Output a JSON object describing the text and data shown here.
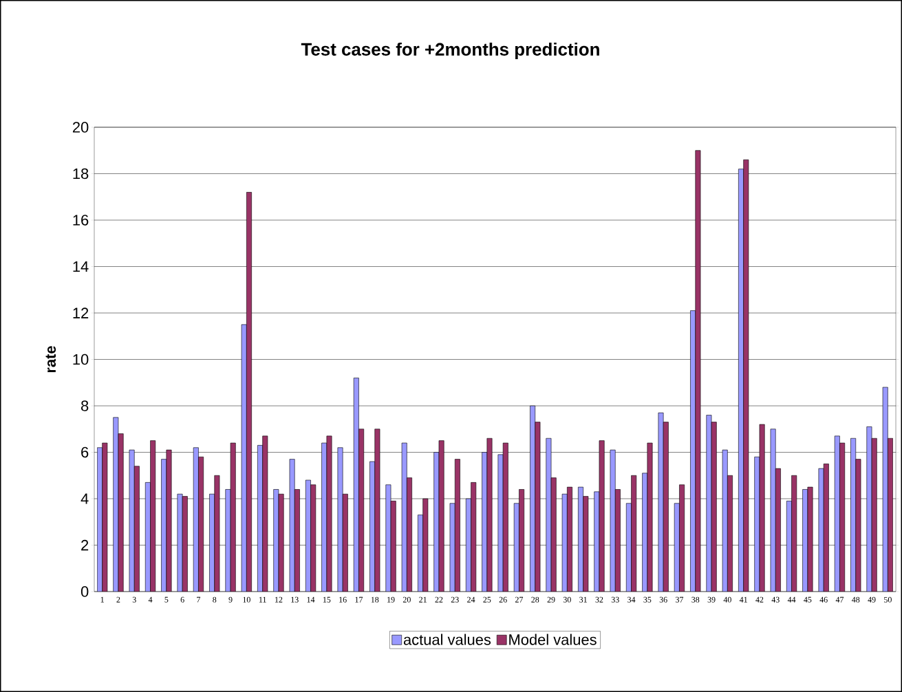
{
  "chart_data": {
    "type": "bar",
    "title": "Test cases for +2months prediction",
    "ylabel": "rate",
    "categories": [
      "1",
      "2",
      "3",
      "4",
      "5",
      "6",
      "7",
      "8",
      "9",
      "10",
      "11",
      "12",
      "13",
      "14",
      "15",
      "16",
      "17",
      "18",
      "19",
      "20",
      "21",
      "22",
      "23",
      "24",
      "25",
      "26",
      "27",
      "28",
      "29",
      "30",
      "31",
      "32",
      "33",
      "34",
      "35",
      "36",
      "37",
      "38",
      "39",
      "40",
      "41",
      "42",
      "43",
      "44",
      "45",
      "46",
      "47",
      "48",
      "49",
      "50"
    ],
    "series": [
      {
        "name": "actual values",
        "color": "#9999ff",
        "values": [
          6.2,
          7.5,
          6.1,
          4.7,
          5.7,
          4.2,
          6.2,
          4.2,
          4.4,
          11.5,
          6.3,
          4.4,
          5.7,
          4.8,
          6.4,
          6.2,
          9.2,
          5.6,
          4.6,
          6.4,
          3.3,
          6.0,
          3.8,
          4.0,
          6.0,
          5.9,
          3.8,
          8.0,
          6.6,
          4.2,
          4.5,
          4.3,
          6.1,
          3.8,
          5.1,
          7.7,
          3.8,
          12.1,
          7.6,
          6.1,
          18.2,
          5.8,
          7.0,
          3.9,
          4.4,
          5.3,
          6.7,
          6.6,
          7.1,
          8.8
        ]
      },
      {
        "name": "Model values",
        "color": "#993366",
        "values": [
          6.4,
          6.8,
          5.4,
          6.5,
          6.1,
          4.1,
          5.8,
          5.0,
          6.4,
          17.2,
          6.7,
          4.2,
          4.4,
          4.6,
          6.7,
          4.2,
          7.0,
          7.0,
          3.9,
          4.9,
          4.0,
          6.5,
          5.7,
          4.7,
          6.6,
          6.4,
          4.4,
          7.3,
          4.9,
          4.5,
          4.1,
          6.5,
          4.4,
          5.0,
          6.4,
          7.3,
          4.6,
          19.0,
          7.3,
          5.0,
          18.6,
          7.2,
          5.3,
          5.0,
          4.5,
          5.5,
          6.4,
          5.7,
          6.6,
          6.6
        ]
      }
    ],
    "ylim": [
      0,
      20
    ],
    "yticks": [
      0,
      2,
      4,
      6,
      8,
      10,
      12,
      14,
      16,
      18,
      20
    ],
    "grid": "y",
    "legend": "bottom"
  }
}
